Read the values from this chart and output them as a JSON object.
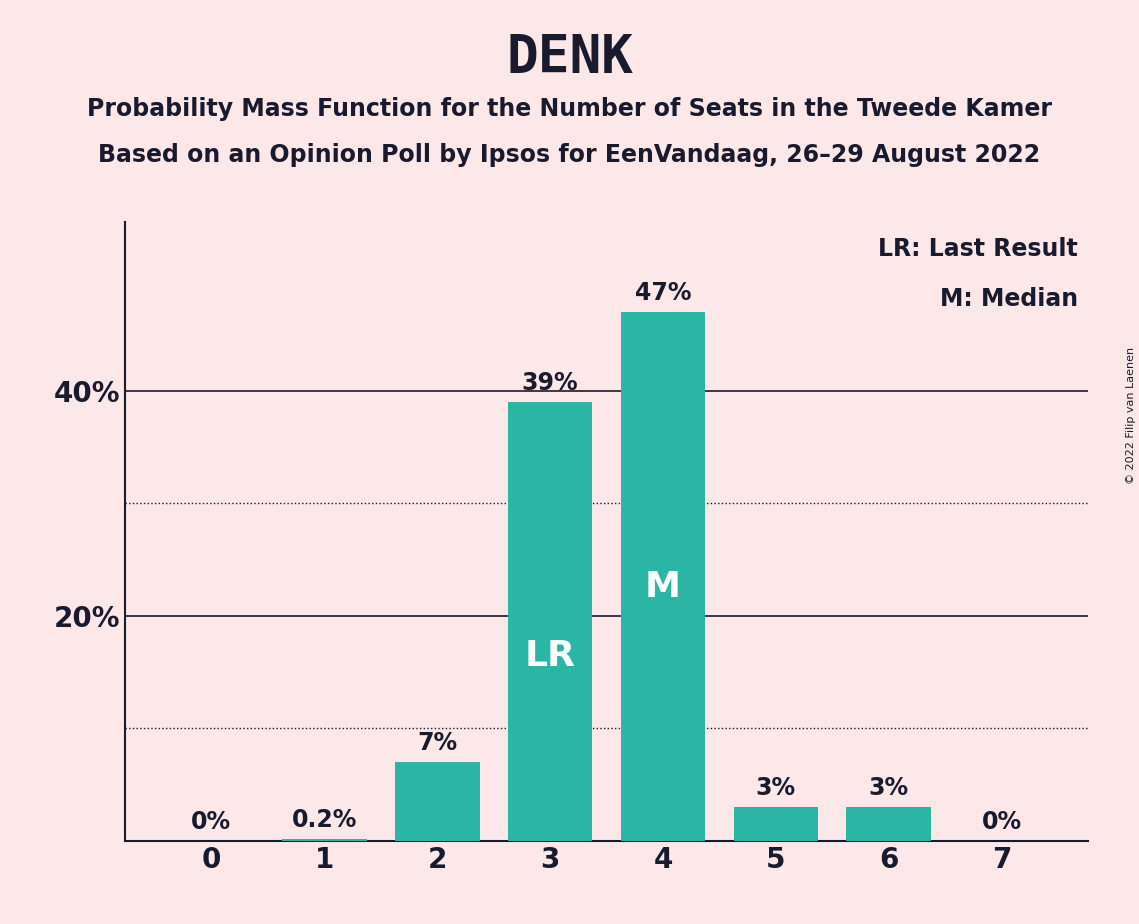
{
  "title": "DENK",
  "subtitle1": "Probability Mass Function for the Number of Seats in the Tweede Kamer",
  "subtitle2": "Based on an Opinion Poll by Ipsos for EenVandaag, 26–29 August 2022",
  "copyright": "© 2022 Filip van Laenen",
  "categories": [
    0,
    1,
    2,
    3,
    4,
    5,
    6,
    7
  ],
  "values": [
    0.0,
    0.2,
    7.0,
    39.0,
    47.0,
    3.0,
    3.0,
    0.0
  ],
  "bar_labels": [
    "0%",
    "0.2%",
    "7%",
    "39%",
    "47%",
    "3%",
    "3%",
    "0%"
  ],
  "bar_color": "#2ab5a5",
  "background_color": "#fce8e8",
  "text_color": "#1a1a2e",
  "lr_bar": 3,
  "median_bar": 4,
  "lr_label": "LR",
  "median_label": "M",
  "legend_lr": "LR: Last Result",
  "legend_m": "M: Median",
  "yticks": [
    20,
    40
  ],
  "ytick_labels": [
    "20%",
    "40%"
  ],
  "ylim": [
    0,
    55
  ],
  "dotted_lines": [
    10,
    30
  ],
  "title_fontsize": 38,
  "subtitle_fontsize": 17,
  "bar_label_fontsize": 17,
  "axis_tick_fontsize": 20,
  "inbar_label_fontsize": 26,
  "legend_fontsize": 17
}
